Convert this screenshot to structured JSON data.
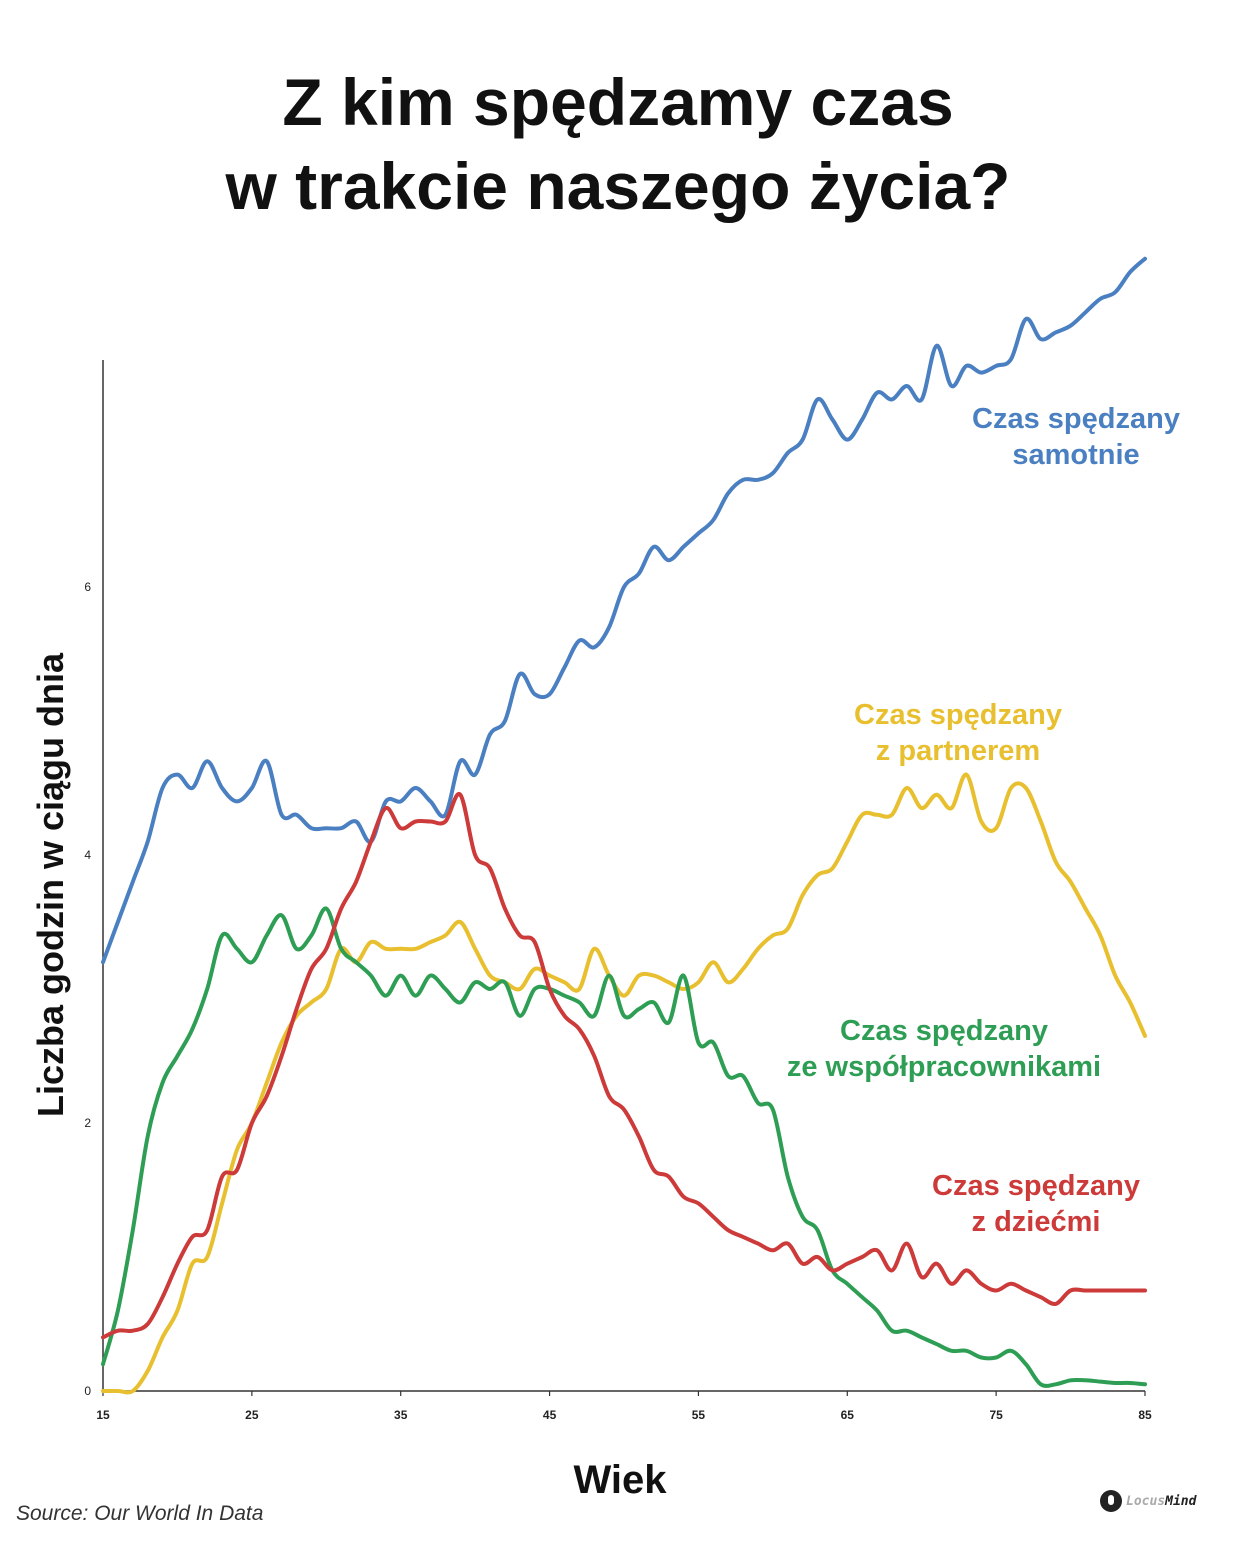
{
  "title": {
    "line1": "Z kim spędzamy czas",
    "line2": "w trakcie naszego życia?"
  },
  "source": "Source: Our World In Data",
  "logo": {
    "part1": "Locus",
    "part2": "Mind"
  },
  "chart_data": {
    "type": "line",
    "title": "Z kim spędzamy czas w trakcie naszego życia?",
    "xlabel": "Wiek",
    "ylabel": "Liczba godzin w ciągu dnia",
    "xlim": [
      15,
      85
    ],
    "ylim": [
      0,
      7.7
    ],
    "x_ticks": [
      15,
      25,
      35,
      45,
      55,
      65,
      75,
      85
    ],
    "y_ticks": [
      0,
      2,
      4,
      6
    ],
    "grid": false,
    "legend": "inline labels at right",
    "series": [
      {
        "name": "Czas spędzany samotnie",
        "label_lines": [
          "Czas spędzany",
          "samotnie"
        ],
        "color": "#4a7fc1",
        "x": [
          15,
          16,
          17,
          18,
          19,
          20,
          21,
          22,
          23,
          24,
          25,
          26,
          27,
          28,
          29,
          30,
          31,
          32,
          33,
          34,
          35,
          36,
          37,
          38,
          39,
          40,
          41,
          42,
          43,
          44,
          45,
          46,
          47,
          48,
          49,
          50,
          51,
          52,
          53,
          54,
          55,
          56,
          57,
          58,
          59,
          60,
          61,
          62,
          63,
          64,
          65,
          66,
          67,
          68,
          69,
          70,
          71,
          72,
          73,
          74,
          75,
          76,
          77,
          78,
          79,
          80,
          81,
          82,
          83,
          84,
          85
        ],
        "y": [
          3.2,
          3.5,
          3.8,
          4.1,
          4.5,
          4.6,
          4.5,
          4.7,
          4.5,
          4.4,
          4.5,
          4.7,
          4.3,
          4.3,
          4.2,
          4.2,
          4.2,
          4.25,
          4.1,
          4.4,
          4.4,
          4.5,
          4.4,
          4.3,
          4.7,
          4.6,
          4.9,
          5.0,
          5.35,
          5.2,
          5.2,
          5.4,
          5.6,
          5.55,
          5.7,
          6.0,
          6.1,
          6.3,
          6.2,
          6.3,
          6.4,
          6.5,
          6.7,
          6.8,
          6.8,
          6.85,
          7.0,
          7.1,
          7.4,
          7.25,
          7.1,
          7.25,
          7.45,
          7.4,
          7.5,
          7.4,
          7.8,
          7.5,
          7.65,
          7.6,
          7.65,
          7.7,
          8.0,
          7.85,
          7.9,
          7.95,
          8.05,
          8.15,
          8.2,
          8.35,
          8.45
        ]
      },
      {
        "name": "Czas spędzany z partnerem",
        "label_lines": [
          "Czas spędzany",
          "z partnerem"
        ],
        "color": "#e8bf2e",
        "x": [
          15,
          16,
          17,
          18,
          19,
          20,
          21,
          22,
          23,
          24,
          25,
          26,
          27,
          28,
          29,
          30,
          31,
          32,
          33,
          34,
          35,
          36,
          37,
          38,
          39,
          40,
          41,
          42,
          43,
          44,
          45,
          46,
          47,
          48,
          49,
          50,
          51,
          52,
          53,
          54,
          55,
          56,
          57,
          58,
          59,
          60,
          61,
          62,
          63,
          64,
          65,
          66,
          67,
          68,
          69,
          70,
          71,
          72,
          73,
          74,
          75,
          76,
          77,
          78,
          79,
          80,
          81,
          82,
          83,
          84,
          85
        ],
        "y": [
          0,
          0,
          0,
          0.15,
          0.4,
          0.6,
          0.95,
          1.0,
          1.4,
          1.8,
          2.0,
          2.3,
          2.6,
          2.8,
          2.9,
          3.0,
          3.3,
          3.2,
          3.35,
          3.3,
          3.3,
          3.3,
          3.35,
          3.4,
          3.5,
          3.3,
          3.1,
          3.05,
          3.0,
          3.15,
          3.1,
          3.05,
          3.0,
          3.3,
          3.1,
          2.95,
          3.1,
          3.1,
          3.05,
          3.0,
          3.05,
          3.2,
          3.05,
          3.15,
          3.3,
          3.4,
          3.45,
          3.7,
          3.85,
          3.9,
          4.1,
          4.3,
          4.3,
          4.3,
          4.5,
          4.35,
          4.45,
          4.35,
          4.6,
          4.25,
          4.2,
          4.5,
          4.5,
          4.25,
          3.95,
          3.8,
          3.6,
          3.4,
          3.1,
          2.9,
          2.65
        ]
      },
      {
        "name": "Czas spędzany ze współpracownikami",
        "label_lines": [
          "Czas spędzany",
          "ze współpracownikami"
        ],
        "color": "#2e9e55",
        "x": [
          15,
          16,
          17,
          18,
          19,
          20,
          21,
          22,
          23,
          24,
          25,
          26,
          27,
          28,
          29,
          30,
          31,
          32,
          33,
          34,
          35,
          36,
          37,
          38,
          39,
          40,
          41,
          42,
          43,
          44,
          45,
          46,
          47,
          48,
          49,
          50,
          51,
          52,
          53,
          54,
          55,
          56,
          57,
          58,
          59,
          60,
          61,
          62,
          63,
          64,
          65,
          66,
          67,
          68,
          69,
          70,
          71,
          72,
          73,
          74,
          75,
          76,
          77,
          78,
          79,
          80,
          81,
          82,
          83,
          84,
          85
        ],
        "y": [
          0.2,
          0.6,
          1.2,
          1.9,
          2.3,
          2.5,
          2.7,
          3.0,
          3.4,
          3.3,
          3.2,
          3.4,
          3.55,
          3.3,
          3.4,
          3.6,
          3.3,
          3.2,
          3.1,
          2.95,
          3.1,
          2.95,
          3.1,
          3.0,
          2.9,
          3.05,
          3.0,
          3.05,
          2.8,
          3.0,
          3.0,
          2.95,
          2.9,
          2.8,
          3.1,
          2.8,
          2.85,
          2.9,
          2.75,
          3.1,
          2.6,
          2.6,
          2.35,
          2.35,
          2.15,
          2.1,
          1.6,
          1.3,
          1.2,
          0.9,
          0.8,
          0.7,
          0.6,
          0.45,
          0.45,
          0.4,
          0.35,
          0.3,
          0.3,
          0.25,
          0.25,
          0.3,
          0.2,
          0.05,
          0.05,
          0.08,
          0.08,
          0.07,
          0.06,
          0.06,
          0.05
        ]
      },
      {
        "name": "Czas spędzany z dziećmi",
        "label_lines": [
          "Czas spędzany",
          "z dziećmi"
        ],
        "color": "#cc3a3a",
        "x": [
          15,
          16,
          17,
          18,
          19,
          20,
          21,
          22,
          23,
          24,
          25,
          26,
          27,
          28,
          29,
          30,
          31,
          32,
          33,
          34,
          35,
          36,
          37,
          38,
          39,
          40,
          41,
          42,
          43,
          44,
          45,
          46,
          47,
          48,
          49,
          50,
          51,
          52,
          53,
          54,
          55,
          56,
          57,
          58,
          59,
          60,
          61,
          62,
          63,
          64,
          65,
          66,
          67,
          68,
          69,
          70,
          71,
          72,
          73,
          74,
          75,
          76,
          77,
          78,
          79,
          80,
          81,
          82,
          83,
          84,
          85
        ],
        "y": [
          0.4,
          0.45,
          0.45,
          0.5,
          0.7,
          0.95,
          1.15,
          1.2,
          1.6,
          1.65,
          2.0,
          2.2,
          2.5,
          2.85,
          3.15,
          3.3,
          3.6,
          3.8,
          4.1,
          4.35,
          4.2,
          4.25,
          4.25,
          4.25,
          4.45,
          4.0,
          3.9,
          3.6,
          3.4,
          3.35,
          3.0,
          2.8,
          2.7,
          2.5,
          2.2,
          2.1,
          1.9,
          1.65,
          1.6,
          1.45,
          1.4,
          1.3,
          1.2,
          1.15,
          1.1,
          1.05,
          1.1,
          0.95,
          1.0,
          0.9,
          0.95,
          1.0,
          1.05,
          0.9,
          1.1,
          0.85,
          0.95,
          0.8,
          0.9,
          0.8,
          0.75,
          0.8,
          0.75,
          0.7,
          0.65,
          0.75,
          0.75,
          0.75,
          0.75,
          0.75,
          0.75
        ]
      }
    ]
  }
}
